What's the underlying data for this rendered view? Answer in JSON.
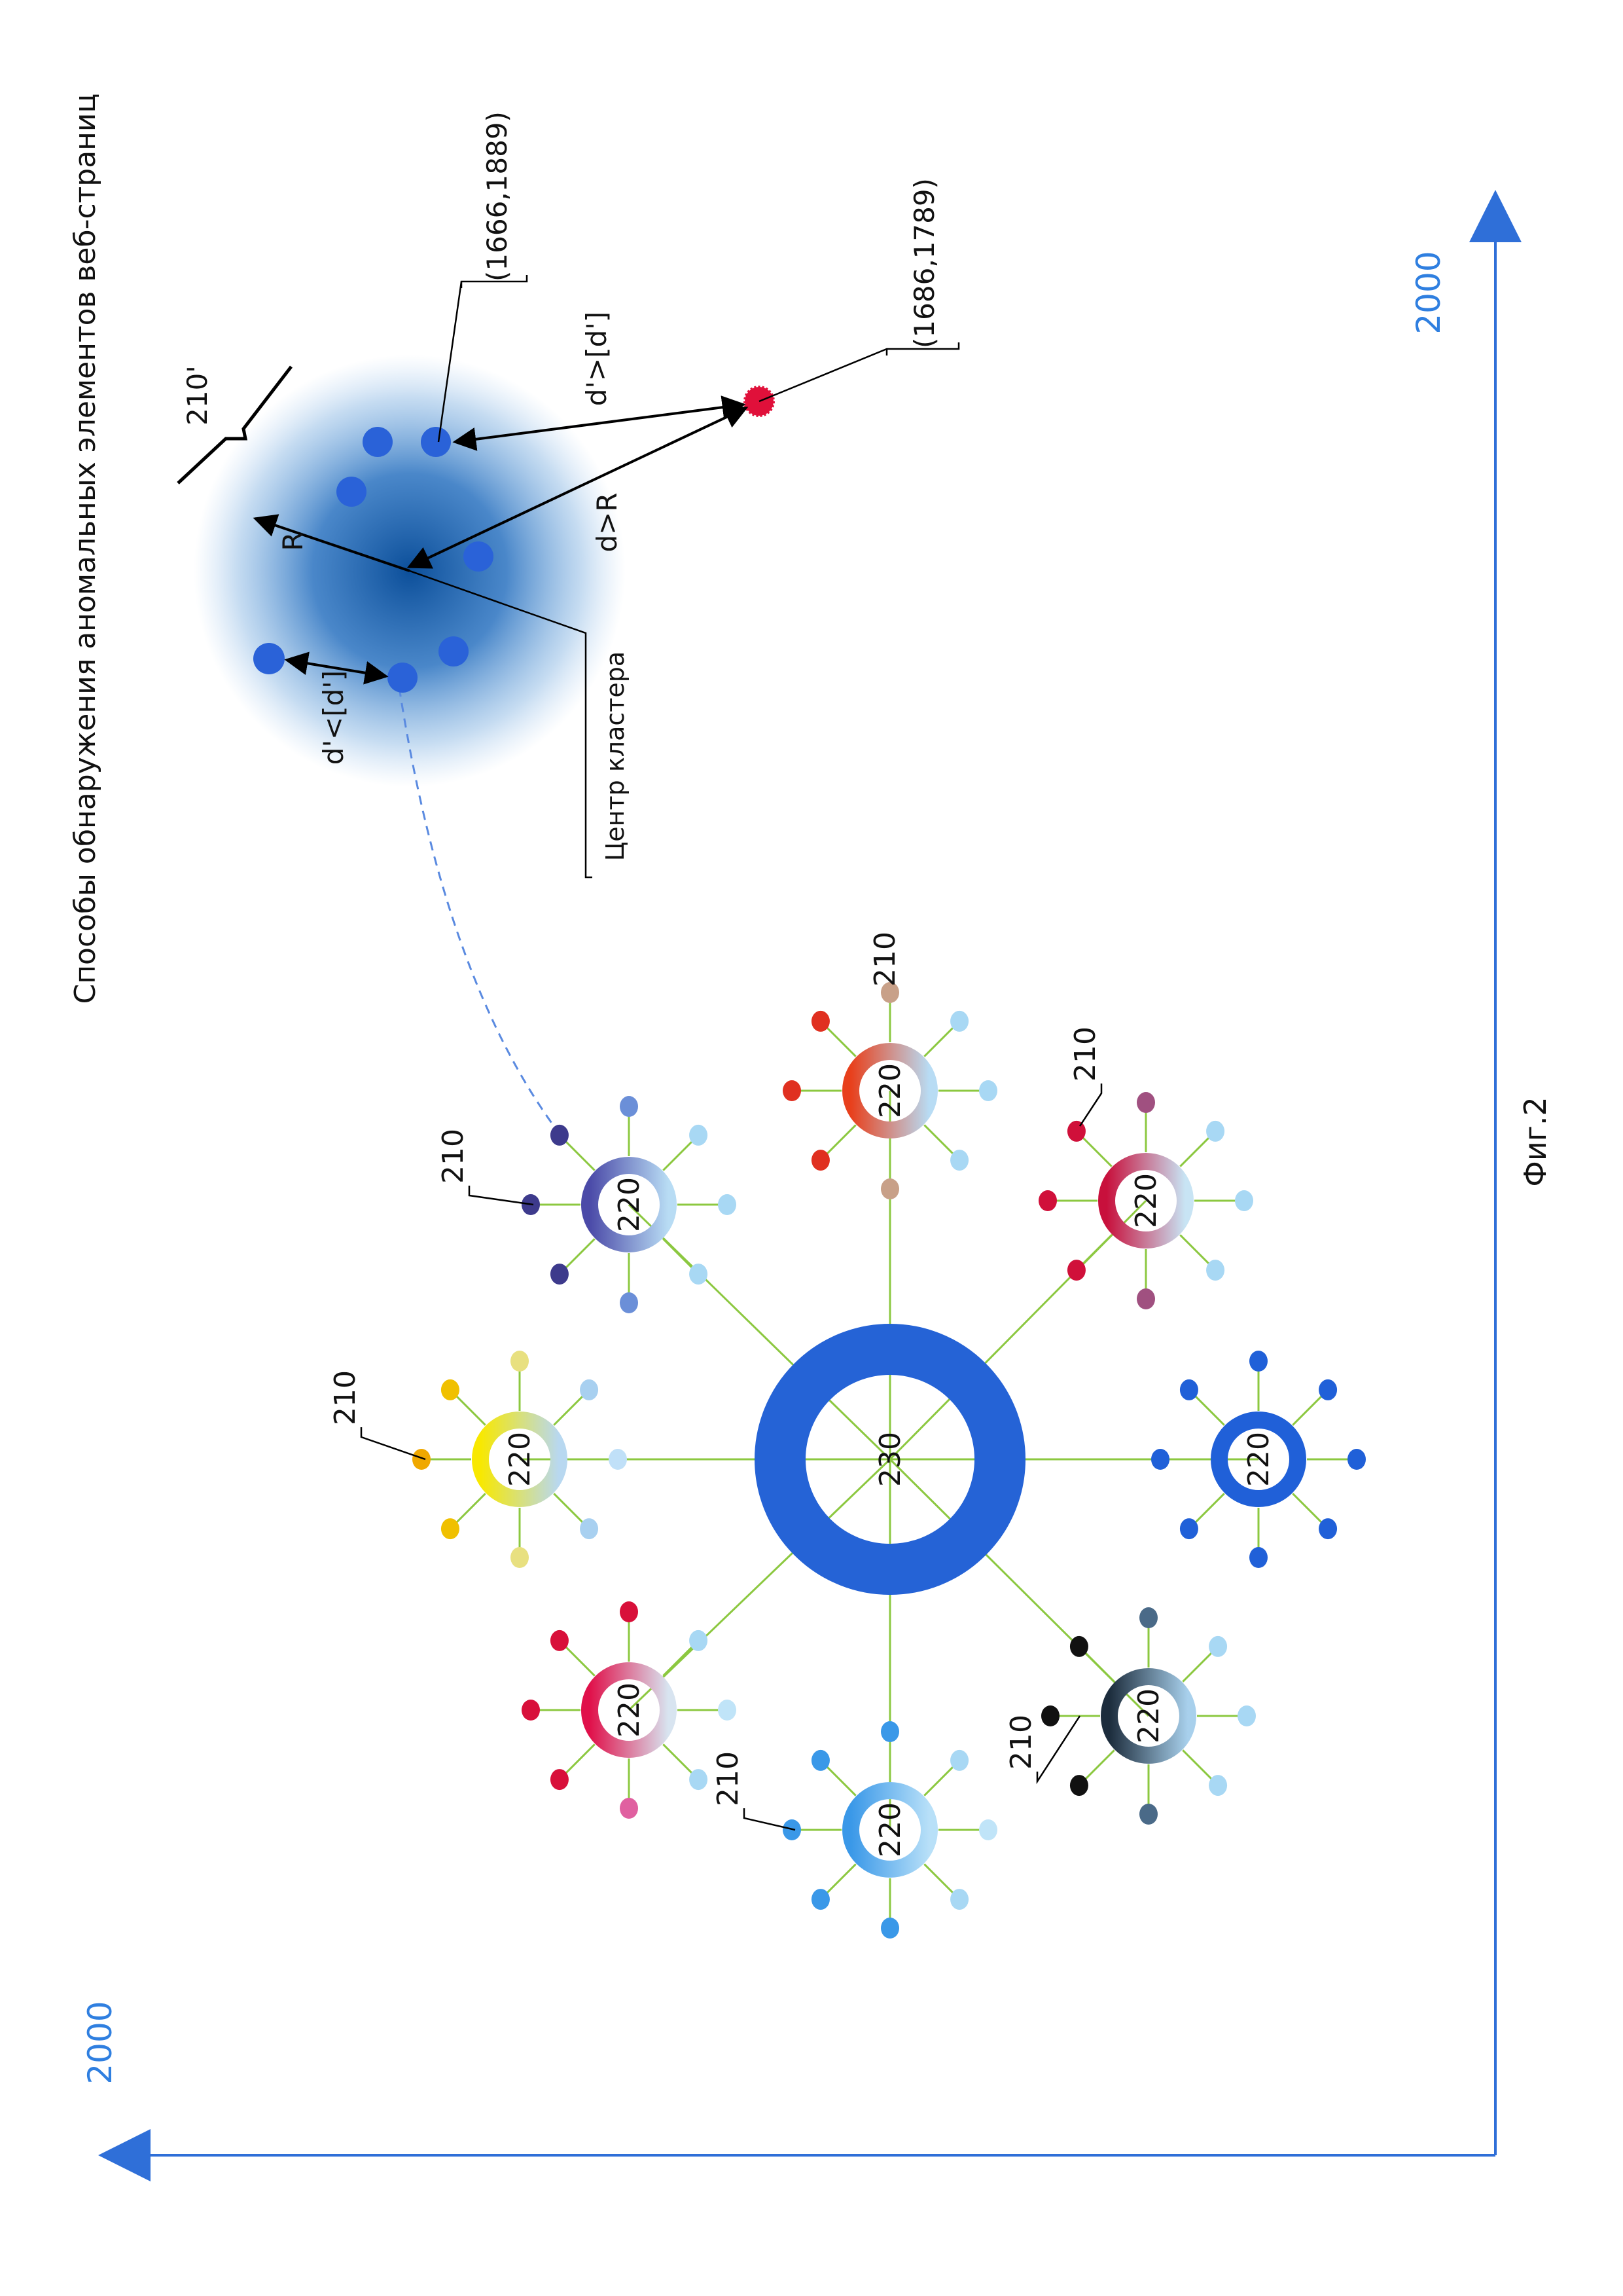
{
  "title": "Способы обнаружения аномальных элементов веб-страниц",
  "figure_label": "Фиг.2",
  "axes": {
    "x_max_label": "2000",
    "y_max_label": "2000",
    "color": "#2f6fd8"
  },
  "central_node": {
    "label": "230",
    "color": "#2563d6"
  },
  "edge_color": "#8cc840",
  "satellites": [
    {
      "label": "220",
      "ref": "210",
      "grad": [
        "#4b4aa8",
        "#b8dcf4"
      ],
      "dots": [
        "#a8d8f4",
        "#a8d8f4",
        "#6b8fd8",
        "#3d3a8c",
        "#3d3a8c",
        "#3d3a8c",
        "#6b8fd8",
        "#a8d8f4"
      ]
    },
    {
      "label": "220",
      "ref": "210",
      "grad": [
        "#e8401c",
        "#b8dcf4"
      ],
      "dots": [
        "#a8d8f4",
        "#a8d8f4",
        "#c8a088",
        "#e03020",
        "#e03020",
        "#e03020",
        "#c8a088",
        "#a8d8f4"
      ]
    },
    {
      "label": "220",
      "ref": "210",
      "grad": [
        "#c8103c",
        "#c8e4f4"
      ],
      "dots": [
        "#a8d8f4",
        "#a8d8f4",
        "#a05080",
        "#d0103a",
        "#d0103a",
        "#d0103a",
        "#a05080",
        "#a8d8f4"
      ]
    },
    {
      "label": "220",
      "ref": "",
      "grad": [
        "#2060d8",
        "#2060d8"
      ],
      "dots": [
        "#2060d8",
        "#2060d8",
        "#2060d8",
        "#2060d8",
        "#2060d8",
        "#2060d8",
        "#2060d8",
        "#2060d8"
      ]
    },
    {
      "label": "220",
      "ref": "210",
      "grad": [
        "#1c2c3c",
        "#a8d0ec"
      ],
      "dots": [
        "#a8d8f4",
        "#a8d8f4",
        "#4a6a88",
        "#111111",
        "#111111",
        "#111111",
        "#4a6a88",
        "#a8d8f4"
      ]
    },
    {
      "label": "220",
      "ref": "210",
      "grad": [
        "#3a98e8",
        "#b8e0f8"
      ],
      "dots": [
        "#c0e4f8",
        "#a8d8f4",
        "#3a98e8",
        "#3a98e8",
        "#3a98e8",
        "#3a98e8",
        "#3a98e8",
        "#a8d8f4"
      ]
    },
    {
      "label": "220",
      "ref": "",
      "grad": [
        "#e0104a",
        "#d8e4f0"
      ],
      "dots": [
        "#c0e4f8",
        "#a8d8f4",
        "#e060a0",
        "#d8103a",
        "#d8103a",
        "#d8103a",
        "#d8103a",
        "#a8d8f4"
      ]
    },
    {
      "label": "220",
      "ref": "210",
      "grad": [
        "#f8e800",
        "#b8d8f0"
      ],
      "dots": [
        "#c0e0f8",
        "#a8d0f0",
        "#e8e080",
        "#f0c000",
        "#f0a800",
        "#f0c000",
        "#e8e080",
        "#a8d0f0"
      ]
    }
  ],
  "cluster": {
    "ref": "210'",
    "center_label": "Центр кластера",
    "radius_label": "R",
    "near_label": "d'<[d']",
    "far_label": "d'>[d']",
    "dR_label": "d>R",
    "point_label": "(1666,1889)",
    "anomaly_label": "(1686,1789)",
    "point_color": "#2a62d8",
    "anomaly_color": "#e0103a"
  }
}
